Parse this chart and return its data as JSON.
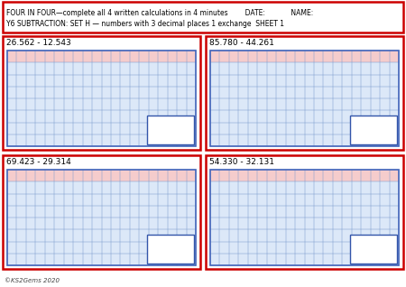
{
  "title_line1": "FOUR IN FOUR—complete all 4 written calculations in 4 minutes        DATE:            NAME:",
  "title_line2": "Y6 SUBTRACTION: SET H — numbers with 3 decimal places 1 exchange  SHEET 1",
  "problems": [
    "26.562 - 12.543",
    "85.780 - 44.261",
    "69.423 - 29.314",
    "54.330 - 32.131"
  ],
  "footer": "©KS2Gems 2020",
  "outer_box_color": "#cc0000",
  "grid_color": "#7799cc",
  "answer_box_color": "#3355aa",
  "grid_border_color": "#4466bb",
  "background_color": "#ffffff",
  "grid_rows": 8,
  "grid_cols": 20,
  "title_font_size": 5.5,
  "problem_font_size": 6.5,
  "footer_font_size": 5.0
}
